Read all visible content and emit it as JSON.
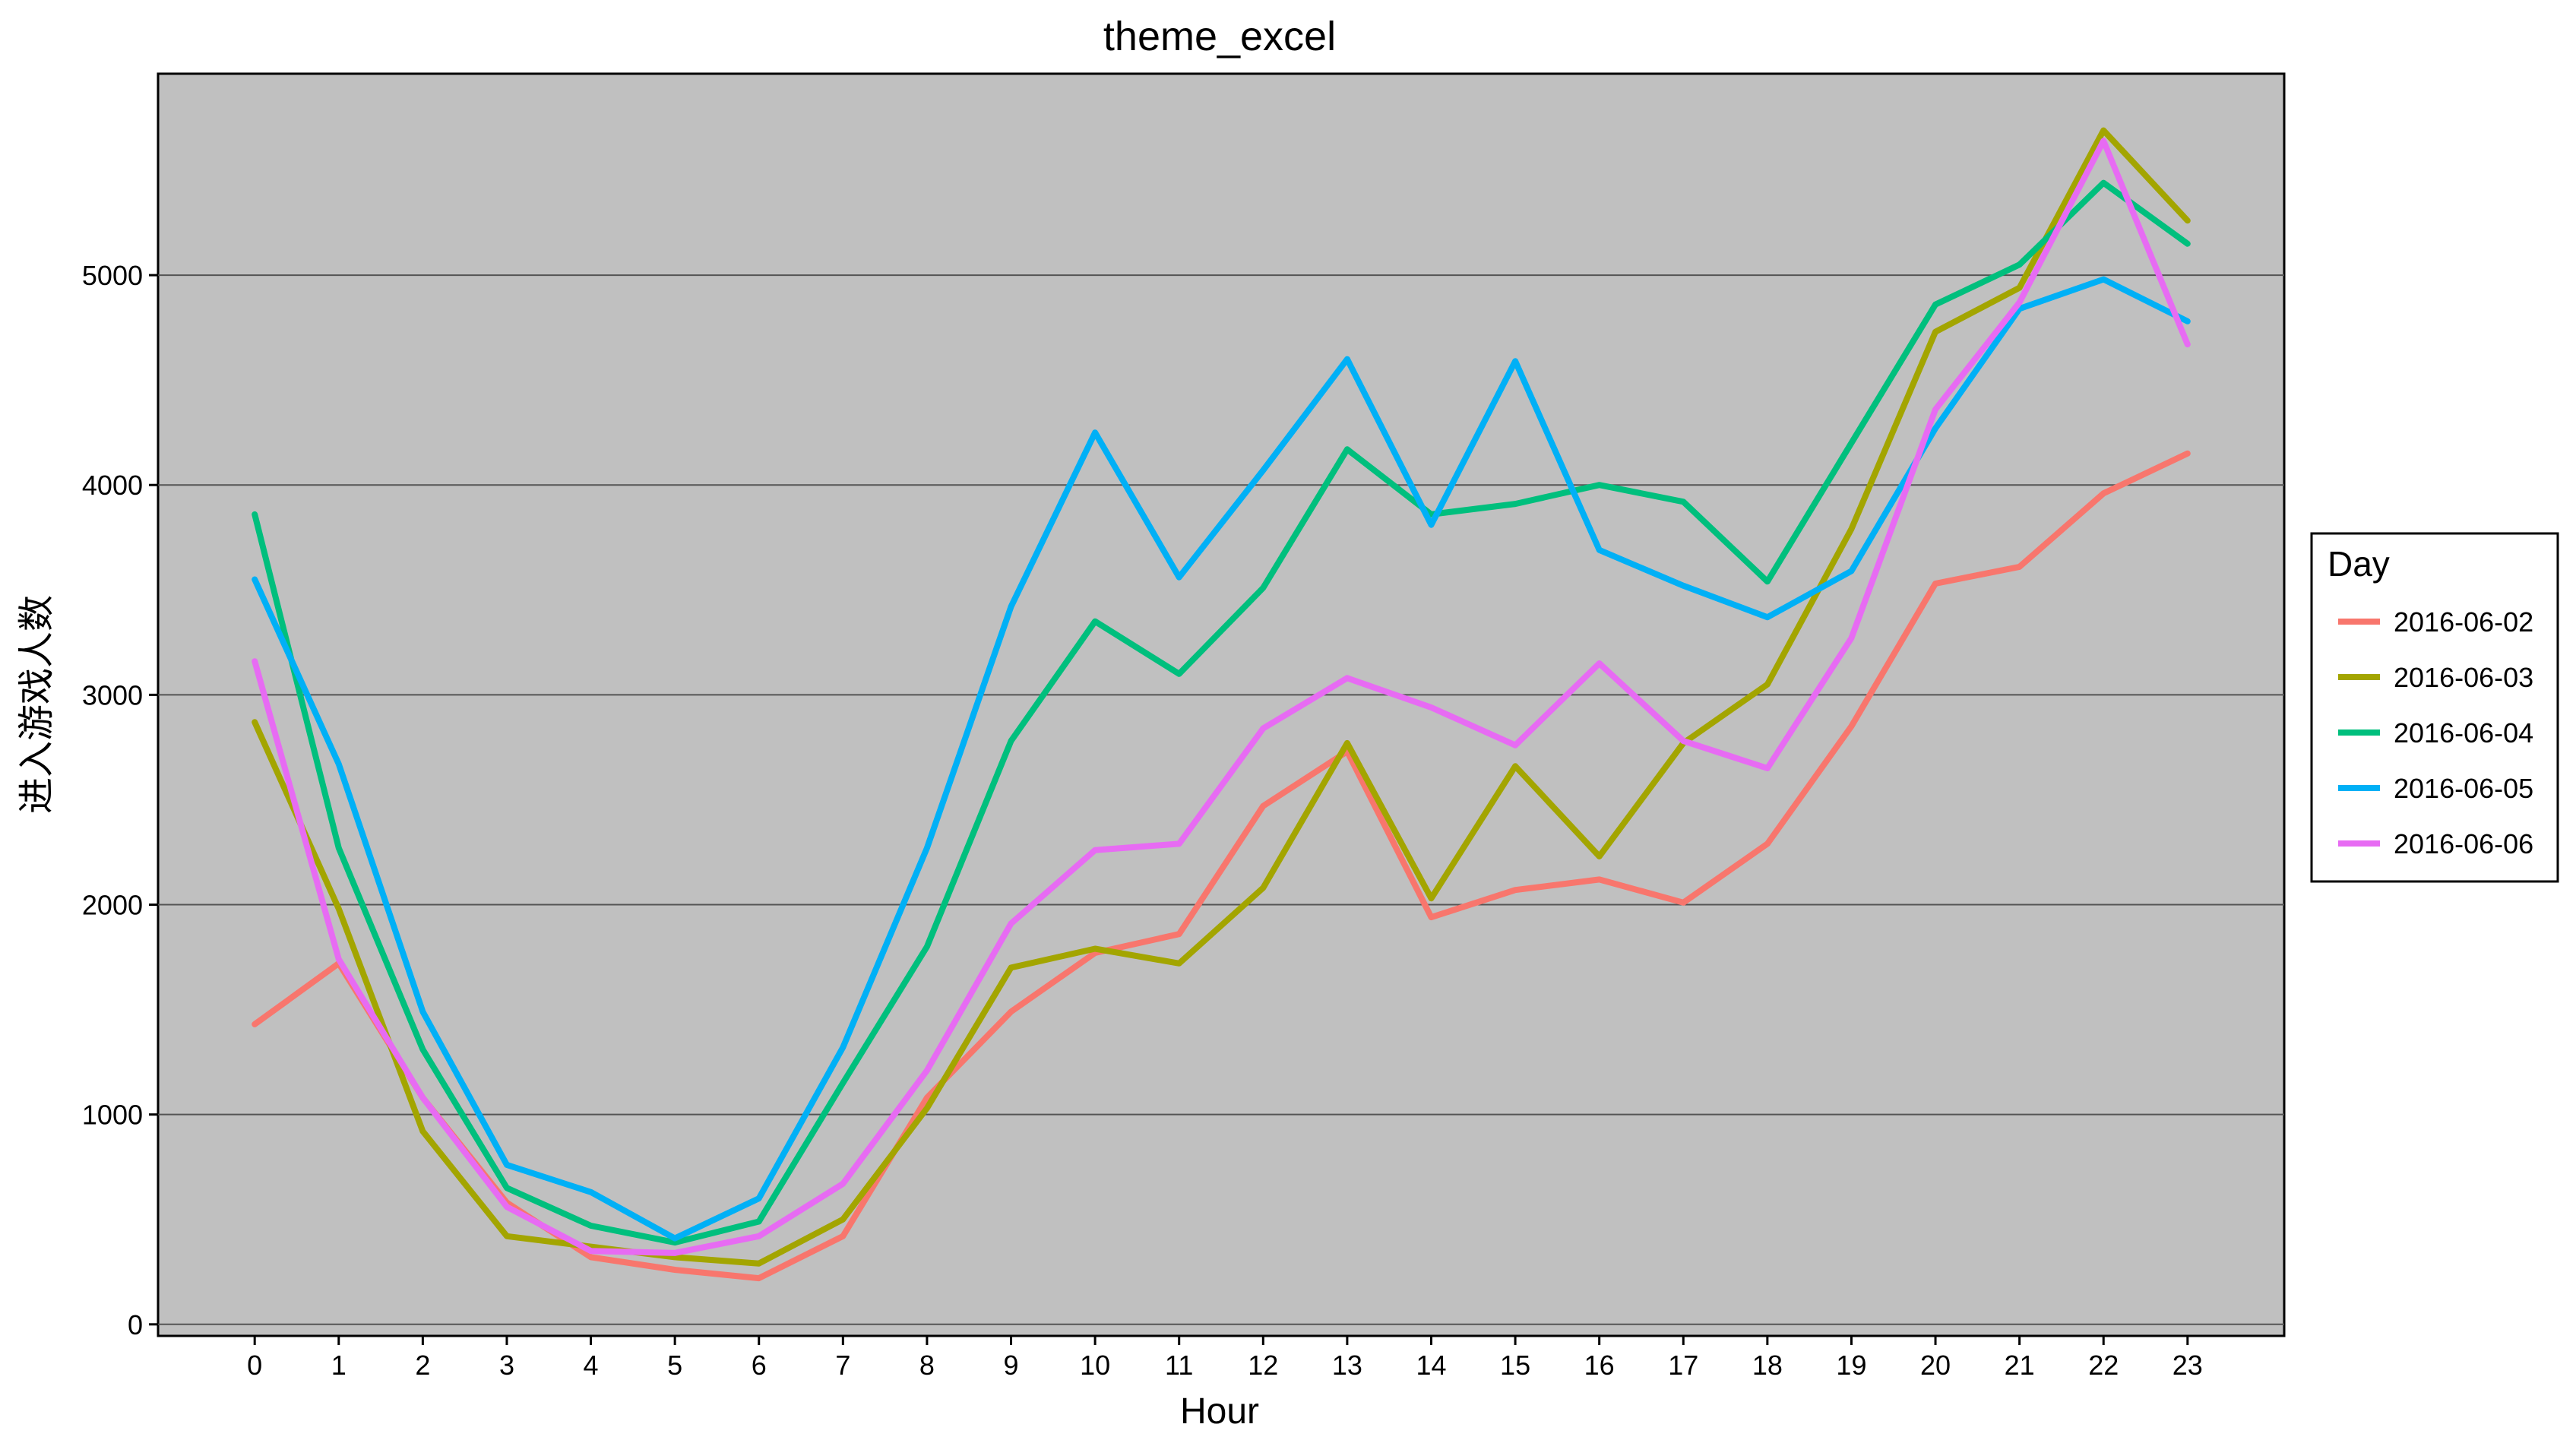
{
  "chart_data": {
    "type": "line",
    "title": "theme_excel",
    "xlabel": "Hour",
    "ylabel": "进入游戏人数",
    "x": [
      0,
      1,
      2,
      3,
      4,
      5,
      6,
      7,
      8,
      9,
      10,
      11,
      12,
      13,
      14,
      15,
      16,
      17,
      18,
      19,
      20,
      21,
      22,
      23
    ],
    "x_ticks": [
      "0",
      "1",
      "2",
      "3",
      "4",
      "5",
      "6",
      "7",
      "8",
      "9",
      "10",
      "11",
      "12",
      "13",
      "14",
      "15",
      "16",
      "17",
      "18",
      "19",
      "20",
      "21",
      "22",
      "23"
    ],
    "y_ticks": [
      0,
      1000,
      2000,
      3000,
      4000,
      5000
    ],
    "xlim": [
      -1.15,
      24.15
    ],
    "ylim": [
      -55,
      5960
    ],
    "grid": "horizontal major lines",
    "panel_background": "#c0c0c0",
    "legend": {
      "title": "Day",
      "position": "right"
    },
    "series": [
      {
        "name": "2016-06-02",
        "color": "#f8766d",
        "values": [
          1430,
          1720,
          1080,
          580,
          320,
          260,
          220,
          420,
          1080,
          1490,
          1770,
          1860,
          2470,
          2730,
          1940,
          2070,
          2120,
          2010,
          2290,
          2850,
          3530,
          3610,
          3960,
          4150
        ]
      },
      {
        "name": "2016-06-03",
        "color": "#a3a500",
        "values": [
          2870,
          1980,
          920,
          420,
          370,
          320,
          290,
          500,
          1030,
          1700,
          1790,
          1720,
          2080,
          2770,
          2030,
          2660,
          2230,
          2770,
          3050,
          3790,
          4730,
          4940,
          5690,
          5260
        ]
      },
      {
        "name": "2016-06-04",
        "color": "#00bf7d",
        "values": [
          3860,
          2270,
          1310,
          650,
          470,
          390,
          490,
          1150,
          1800,
          2780,
          3350,
          3100,
          3510,
          4170,
          3860,
          3910,
          4000,
          3920,
          3540,
          4200,
          4860,
          5050,
          5440,
          5150
        ]
      },
      {
        "name": "2016-06-05",
        "color": "#00b0f6",
        "values": [
          3550,
          2670,
          1490,
          760,
          630,
          410,
          600,
          1320,
          2270,
          3420,
          4250,
          3560,
          4070,
          4600,
          3810,
          4590,
          3690,
          3520,
          3370,
          3590,
          4270,
          4840,
          4980,
          4780
        ]
      },
      {
        "name": "2016-06-06",
        "color": "#e76bf3",
        "values": [
          3160,
          1740,
          1080,
          560,
          350,
          340,
          420,
          670,
          1210,
          1910,
          2260,
          2290,
          2840,
          3080,
          2940,
          2760,
          3150,
          2780,
          2650,
          3270,
          4360,
          4870,
          5640,
          4670
        ]
      }
    ]
  }
}
